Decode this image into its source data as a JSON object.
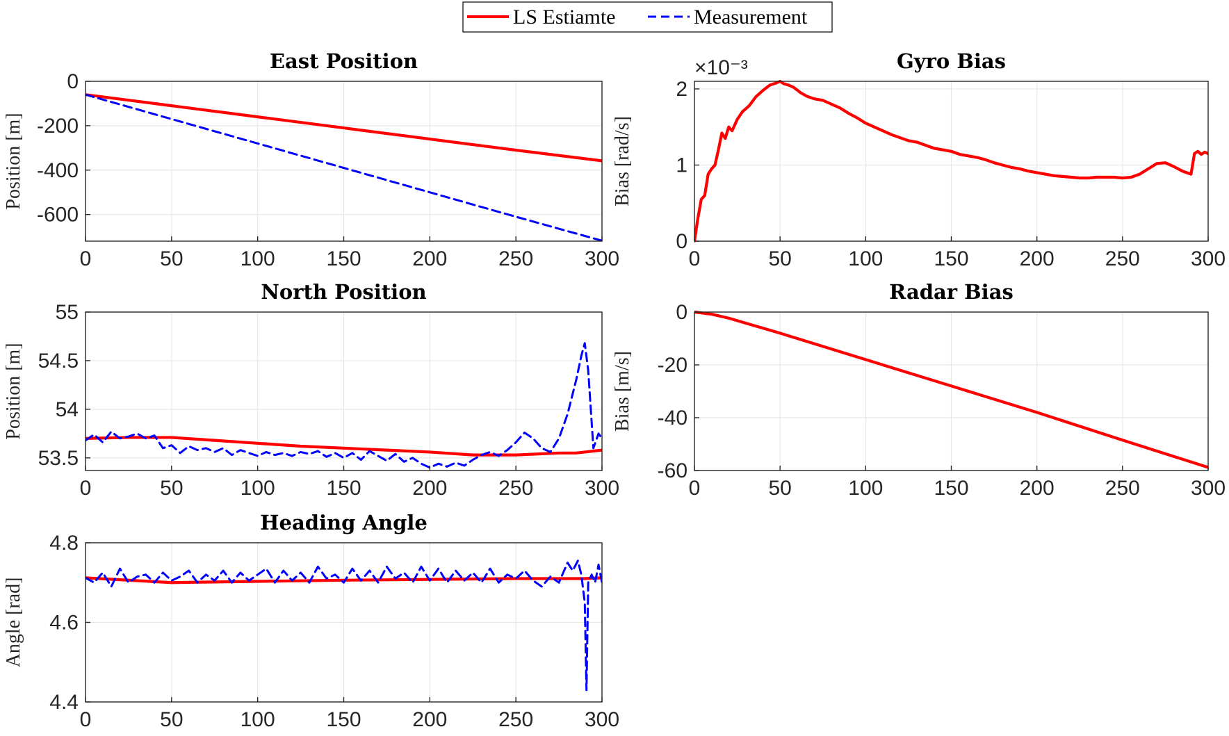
{
  "legend": {
    "entries": [
      {
        "label": "LS Estiamte",
        "color": "#ff0000",
        "style": "solid"
      },
      {
        "label": "Measurement",
        "color": "#0000ff",
        "style": "dashed"
      }
    ]
  },
  "chart_data": [
    {
      "id": "east",
      "type": "line",
      "title": "East Position",
      "ylabel": "Position [m]",
      "xlabel": "",
      "xlim": [
        0,
        300
      ],
      "ylim": [
        -720,
        0
      ],
      "xticks": [
        0,
        50,
        100,
        150,
        200,
        250,
        300
      ],
      "yticks": [
        0,
        -200,
        -400,
        -600
      ],
      "grid": true,
      "series": [
        {
          "name": "LS Estiamte",
          "color": "#ff0000",
          "style": "solid",
          "x": [
            0,
            50,
            100,
            150,
            200,
            250,
            300
          ],
          "y": [
            -60,
            -110,
            -160,
            -210,
            -260,
            -310,
            -358
          ]
        },
        {
          "name": "Measurement",
          "color": "#0000ff",
          "style": "dashed",
          "x": [
            0,
            50,
            100,
            150,
            200,
            250,
            300
          ],
          "y": [
            -60,
            -170,
            -280,
            -390,
            -500,
            -610,
            -718
          ]
        }
      ]
    },
    {
      "id": "gyro",
      "type": "line",
      "title": "Gyro Bias",
      "ylabel": "Bias [rad/s]",
      "xlabel": "",
      "exponent_label": "×10⁻³",
      "xlim": [
        0,
        300
      ],
      "ylim": [
        0,
        2.1
      ],
      "xticks": [
        0,
        50,
        100,
        150,
        200,
        250,
        300
      ],
      "yticks": [
        0,
        1,
        2
      ],
      "ytick_labels": [
        "0",
        "1",
        "2"
      ],
      "grid": true,
      "series": [
        {
          "name": "LS Estiamte",
          "color": "#ff0000",
          "style": "solid",
          "x": [
            0,
            2,
            4,
            6,
            8,
            10,
            12,
            14,
            16,
            18,
            20,
            22,
            25,
            28,
            32,
            36,
            40,
            44,
            48,
            50,
            52,
            55,
            58,
            62,
            66,
            70,
            75,
            80,
            85,
            90,
            95,
            100,
            105,
            110,
            115,
            120,
            125,
            130,
            135,
            140,
            145,
            150,
            155,
            160,
            165,
            170,
            175,
            180,
            185,
            190,
            195,
            200,
            205,
            210,
            215,
            220,
            225,
            230,
            235,
            240,
            245,
            250,
            255,
            260,
            265,
            270,
            275,
            280,
            285,
            290,
            292,
            294,
            296,
            298,
            300
          ],
          "y": [
            0.0,
            0.3,
            0.55,
            0.6,
            0.88,
            0.95,
            1.0,
            1.2,
            1.42,
            1.35,
            1.5,
            1.45,
            1.6,
            1.7,
            1.78,
            1.9,
            1.98,
            2.05,
            2.08,
            2.1,
            2.07,
            2.05,
            2.02,
            1.95,
            1.9,
            1.87,
            1.85,
            1.8,
            1.75,
            1.68,
            1.62,
            1.55,
            1.5,
            1.45,
            1.4,
            1.36,
            1.32,
            1.3,
            1.26,
            1.22,
            1.2,
            1.18,
            1.14,
            1.12,
            1.1,
            1.07,
            1.03,
            1.0,
            0.97,
            0.95,
            0.92,
            0.9,
            0.88,
            0.86,
            0.85,
            0.84,
            0.83,
            0.83,
            0.84,
            0.84,
            0.84,
            0.83,
            0.84,
            0.88,
            0.95,
            1.02,
            1.03,
            0.98,
            0.92,
            0.88,
            1.15,
            1.18,
            1.14,
            1.17,
            1.15
          ]
        }
      ]
    },
    {
      "id": "north",
      "type": "line",
      "title": "North Position",
      "ylabel": "Position [m]",
      "xlabel": "",
      "xlim": [
        0,
        300
      ],
      "ylim": [
        53.37,
        55.0
      ],
      "xticks": [
        0,
        50,
        100,
        150,
        200,
        250,
        300
      ],
      "yticks": [
        53.5,
        54,
        54.5,
        55
      ],
      "ytick_labels": [
        "53.5",
        "54",
        "54.5",
        "55"
      ],
      "grid": true,
      "series": [
        {
          "name": "LS Estiamte",
          "color": "#ff0000",
          "style": "solid",
          "x": [
            0,
            25,
            50,
            75,
            100,
            125,
            150,
            175,
            200,
            225,
            250,
            275,
            285,
            290,
            300
          ],
          "y": [
            53.7,
            53.71,
            53.71,
            53.68,
            53.65,
            53.62,
            53.6,
            53.58,
            53.56,
            53.53,
            53.53,
            53.55,
            53.55,
            53.56,
            53.58
          ]
        },
        {
          "name": "Measurement",
          "color": "#0000ff",
          "style": "dashed",
          "x": [
            0,
            5,
            10,
            15,
            20,
            25,
            30,
            35,
            40,
            45,
            50,
            55,
            60,
            65,
            70,
            75,
            80,
            85,
            90,
            95,
            100,
            105,
            110,
            115,
            120,
            125,
            130,
            135,
            140,
            145,
            150,
            155,
            160,
            165,
            170,
            175,
            180,
            185,
            190,
            195,
            200,
            205,
            210,
            215,
            220,
            225,
            230,
            235,
            240,
            245,
            250,
            255,
            260,
            265,
            270,
            275,
            280,
            285,
            288,
            290,
            292,
            295,
            298,
            300
          ],
          "y": [
            53.68,
            53.74,
            53.66,
            53.77,
            53.7,
            53.72,
            53.75,
            53.7,
            53.73,
            53.6,
            53.63,
            53.55,
            53.62,
            53.58,
            53.6,
            53.56,
            53.6,
            53.53,
            53.58,
            53.55,
            53.52,
            53.56,
            53.53,
            53.55,
            53.52,
            53.56,
            53.54,
            53.57,
            53.51,
            53.55,
            53.5,
            53.55,
            53.48,
            53.57,
            53.52,
            53.47,
            53.54,
            53.46,
            53.5,
            53.44,
            53.4,
            53.44,
            53.41,
            53.45,
            53.42,
            53.48,
            53.53,
            53.56,
            53.52,
            53.58,
            53.66,
            53.76,
            53.7,
            53.6,
            53.56,
            53.7,
            53.95,
            54.3,
            54.55,
            54.68,
            54.4,
            53.6,
            53.75,
            53.7
          ]
        }
      ]
    },
    {
      "id": "radar",
      "type": "line",
      "title": "Radar Bias",
      "ylabel": "Bias [m/s]",
      "xlabel": "",
      "xlim": [
        0,
        300
      ],
      "ylim": [
        -60,
        0
      ],
      "xticks": [
        0,
        50,
        100,
        150,
        200,
        250,
        300
      ],
      "yticks": [
        0,
        -20,
        -40,
        -60
      ],
      "grid": true,
      "series": [
        {
          "name": "LS Estiamte",
          "color": "#ff0000",
          "style": "solid",
          "x": [
            0,
            10,
            20,
            30,
            50,
            100,
            150,
            200,
            250,
            300
          ],
          "y": [
            0,
            -0.8,
            -2.3,
            -4.2,
            -8.0,
            -18.0,
            -28.0,
            -38.0,
            -48.5,
            -58.8
          ]
        }
      ]
    },
    {
      "id": "heading",
      "type": "line",
      "title": "Heading Angle",
      "ylabel": "Angle [rad]",
      "xlabel": "",
      "xlim": [
        0,
        300
      ],
      "ylim": [
        4.4,
        4.8
      ],
      "xticks": [
        0,
        50,
        100,
        150,
        200,
        250,
        300
      ],
      "yticks": [
        4.4,
        4.6,
        4.8
      ],
      "ytick_labels": [
        "4.4",
        "4.6",
        "4.8"
      ],
      "grid": true,
      "series": [
        {
          "name": "LS Estiamte",
          "color": "#ff0000",
          "style": "solid",
          "x": [
            0,
            50,
            100,
            150,
            200,
            250,
            290,
            300
          ],
          "y": [
            4.712,
            4.7,
            4.703,
            4.706,
            4.708,
            4.71,
            4.71,
            4.712
          ]
        },
        {
          "name": "Measurement",
          "color": "#0000ff",
          "style": "dashed",
          "x": [
            0,
            5,
            10,
            15,
            20,
            25,
            30,
            35,
            40,
            45,
            50,
            55,
            60,
            65,
            70,
            75,
            80,
            85,
            90,
            95,
            100,
            105,
            110,
            115,
            120,
            125,
            130,
            135,
            140,
            145,
            150,
            155,
            160,
            165,
            170,
            175,
            180,
            185,
            190,
            195,
            200,
            205,
            210,
            215,
            220,
            225,
            230,
            235,
            240,
            245,
            250,
            255,
            260,
            265,
            270,
            275,
            280,
            283,
            286,
            288,
            290,
            291,
            292,
            294,
            296,
            298,
            300
          ],
          "y": [
            4.712,
            4.7,
            4.725,
            4.69,
            4.735,
            4.7,
            4.715,
            4.72,
            4.7,
            4.725,
            4.705,
            4.715,
            4.73,
            4.7,
            4.72,
            4.705,
            4.73,
            4.7,
            4.725,
            4.705,
            4.72,
            4.735,
            4.7,
            4.73,
            4.705,
            4.725,
            4.7,
            4.74,
            4.71,
            4.72,
            4.7,
            4.735,
            4.705,
            4.73,
            4.7,
            4.74,
            4.71,
            4.725,
            4.7,
            4.74,
            4.705,
            4.735,
            4.7,
            4.73,
            4.705,
            4.725,
            4.7,
            4.735,
            4.7,
            4.72,
            4.71,
            4.73,
            4.705,
            4.69,
            4.715,
            4.7,
            4.75,
            4.73,
            4.755,
            4.72,
            4.65,
            4.43,
            4.7,
            4.72,
            4.7,
            4.745,
            4.7
          ]
        }
      ]
    }
  ]
}
